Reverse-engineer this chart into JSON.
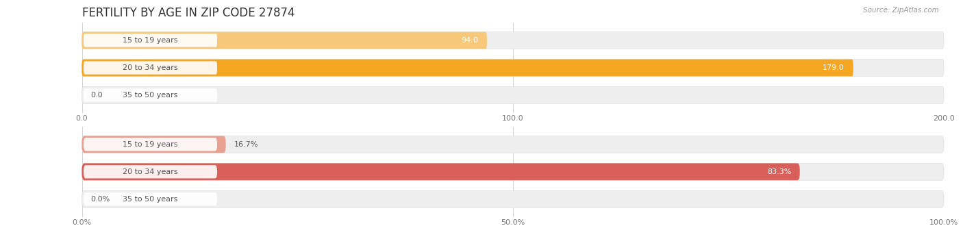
{
  "title": "FERTILITY BY AGE IN ZIP CODE 27874",
  "source_text": "Source: ZipAtlas.com",
  "chart1": {
    "categories": [
      "15 to 19 years",
      "20 to 34 years",
      "35 to 50 years"
    ],
    "values": [
      94.0,
      179.0,
      0.0
    ],
    "labels": [
      "94.0",
      "179.0",
      "0.0"
    ],
    "xlim": [
      0,
      200
    ],
    "xticks": [
      0.0,
      100.0,
      200.0
    ],
    "bar_colors": [
      "#F8C87A",
      "#F5A623",
      "#F8C87A"
    ],
    "bar_bg_color": "#EEEEEE",
    "bar_edge_color": "#DDDDDD",
    "bar_height": 0.62
  },
  "chart2": {
    "categories": [
      "15 to 19 years",
      "20 to 34 years",
      "35 to 50 years"
    ],
    "values": [
      16.7,
      83.3,
      0.0
    ],
    "labels": [
      "16.7%",
      "83.3%",
      "0.0%"
    ],
    "xlim": [
      0,
      100
    ],
    "xticks": [
      0.0,
      50.0,
      100.0
    ],
    "xtick_labels": [
      "0.0%",
      "50.0%",
      "100.0%"
    ],
    "bar_colors": [
      "#E8A090",
      "#D9605A",
      "#E8A090"
    ],
    "bar_bg_color": "#EEEEEE",
    "bar_edge_color": "#DDDDDD",
    "bar_height": 0.62
  },
  "fig_bg_color": "#FFFFFF",
  "title_fontsize": 12,
  "label_fontsize": 8,
  "tick_fontsize": 8,
  "category_fontsize": 8,
  "pill_text_color": "#555555"
}
